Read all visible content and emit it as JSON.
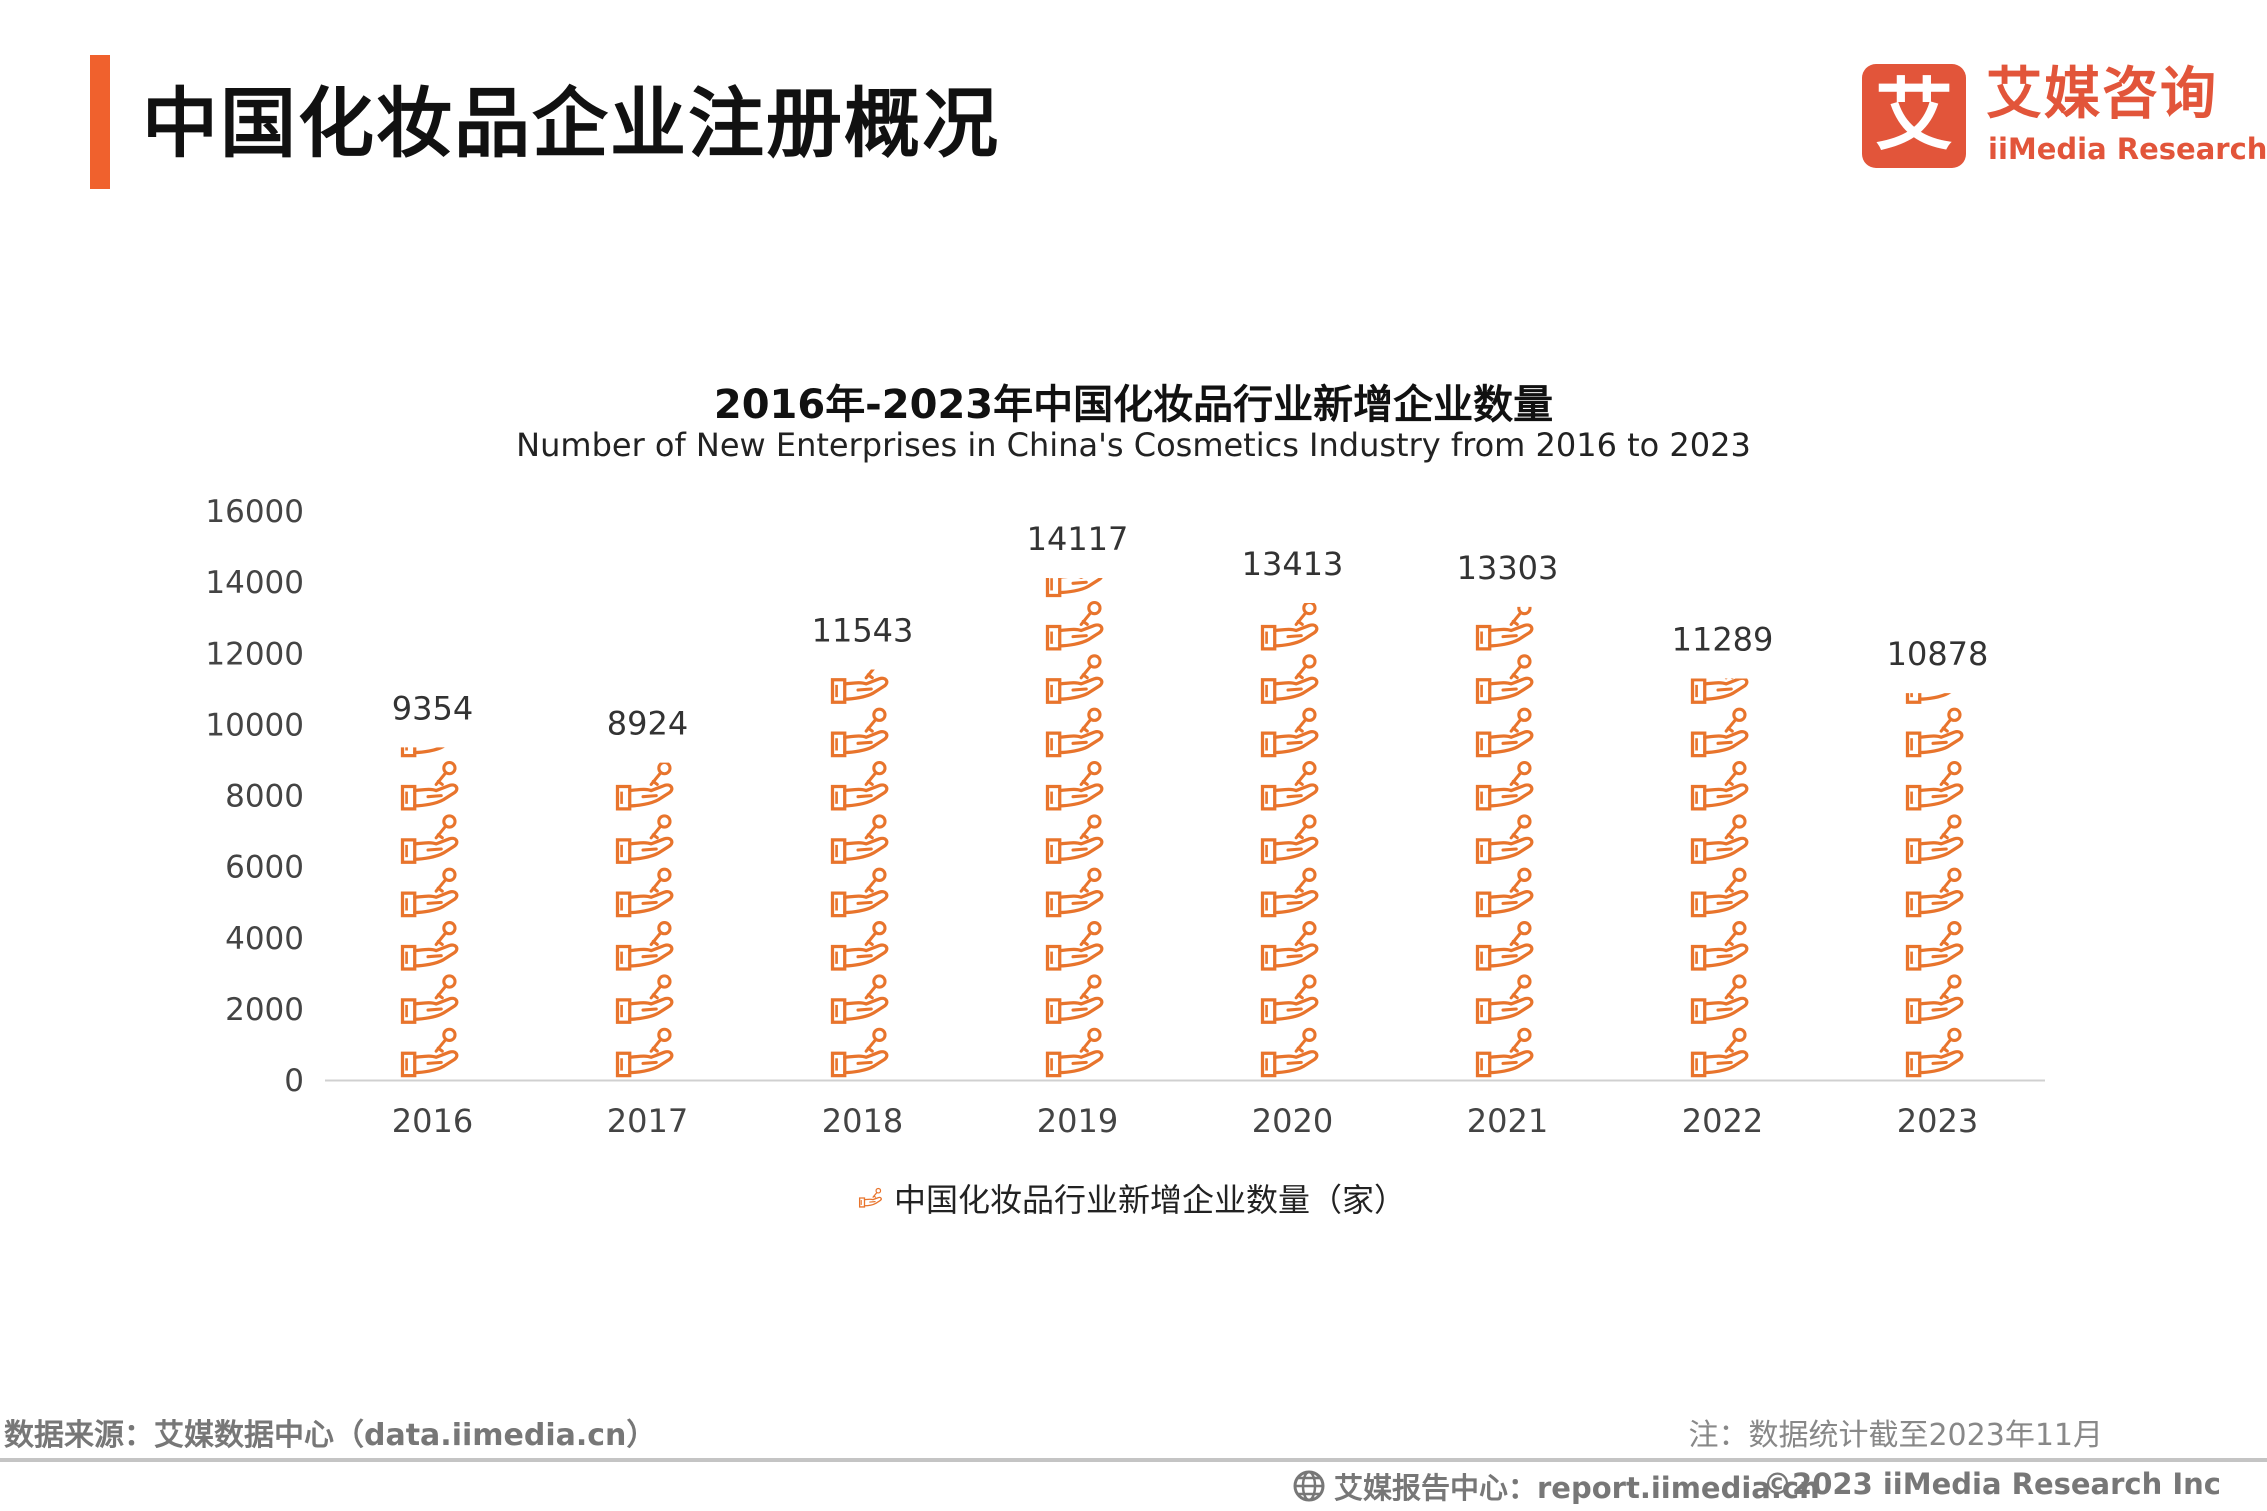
{
  "header": {
    "title": "中国化妆品企业注册概况"
  },
  "logo": {
    "cn": "艾媒咨询",
    "en": "iiMedia Research",
    "mark": "艾"
  },
  "chart_data": {
    "type": "bar",
    "title": "2016年-2023年中国化妆品行业新增企业数量",
    "subtitle": "Number of New Enterprises in China's Cosmetics Industry from 2016 to 2023",
    "categories": [
      "2016",
      "2017",
      "2018",
      "2019",
      "2020",
      "2021",
      "2022",
      "2023"
    ],
    "series": [
      {
        "name": "中国化妆品行业新增企业数量（家）",
        "values": [
          9354,
          8924,
          11543,
          14117,
          13413,
          13303,
          11289,
          10878
        ]
      }
    ],
    "ylim": [
      0,
      16000
    ],
    "yticks": [
      "0",
      "2000",
      "4000",
      "6000",
      "8000",
      "10000",
      "12000",
      "14000",
      "16000"
    ],
    "data_labels": [
      "9354",
      "8924",
      "11543",
      "14117",
      "13413",
      "13303",
      "11289",
      "10878"
    ],
    "bar_style": "pictograph",
    "icon": "hand-holding-key-icon",
    "color": "#e8742c",
    "legend_position": "bottom",
    "grid": false
  },
  "footer": {
    "source": "数据来源：艾媒数据中心（data.iimedia.cn）",
    "note": "注：数据统计截至2023年11月",
    "report": "艾媒报告中心：report.iimedia.cn",
    "copyright": "©2023  iiMedia Research  Inc"
  }
}
